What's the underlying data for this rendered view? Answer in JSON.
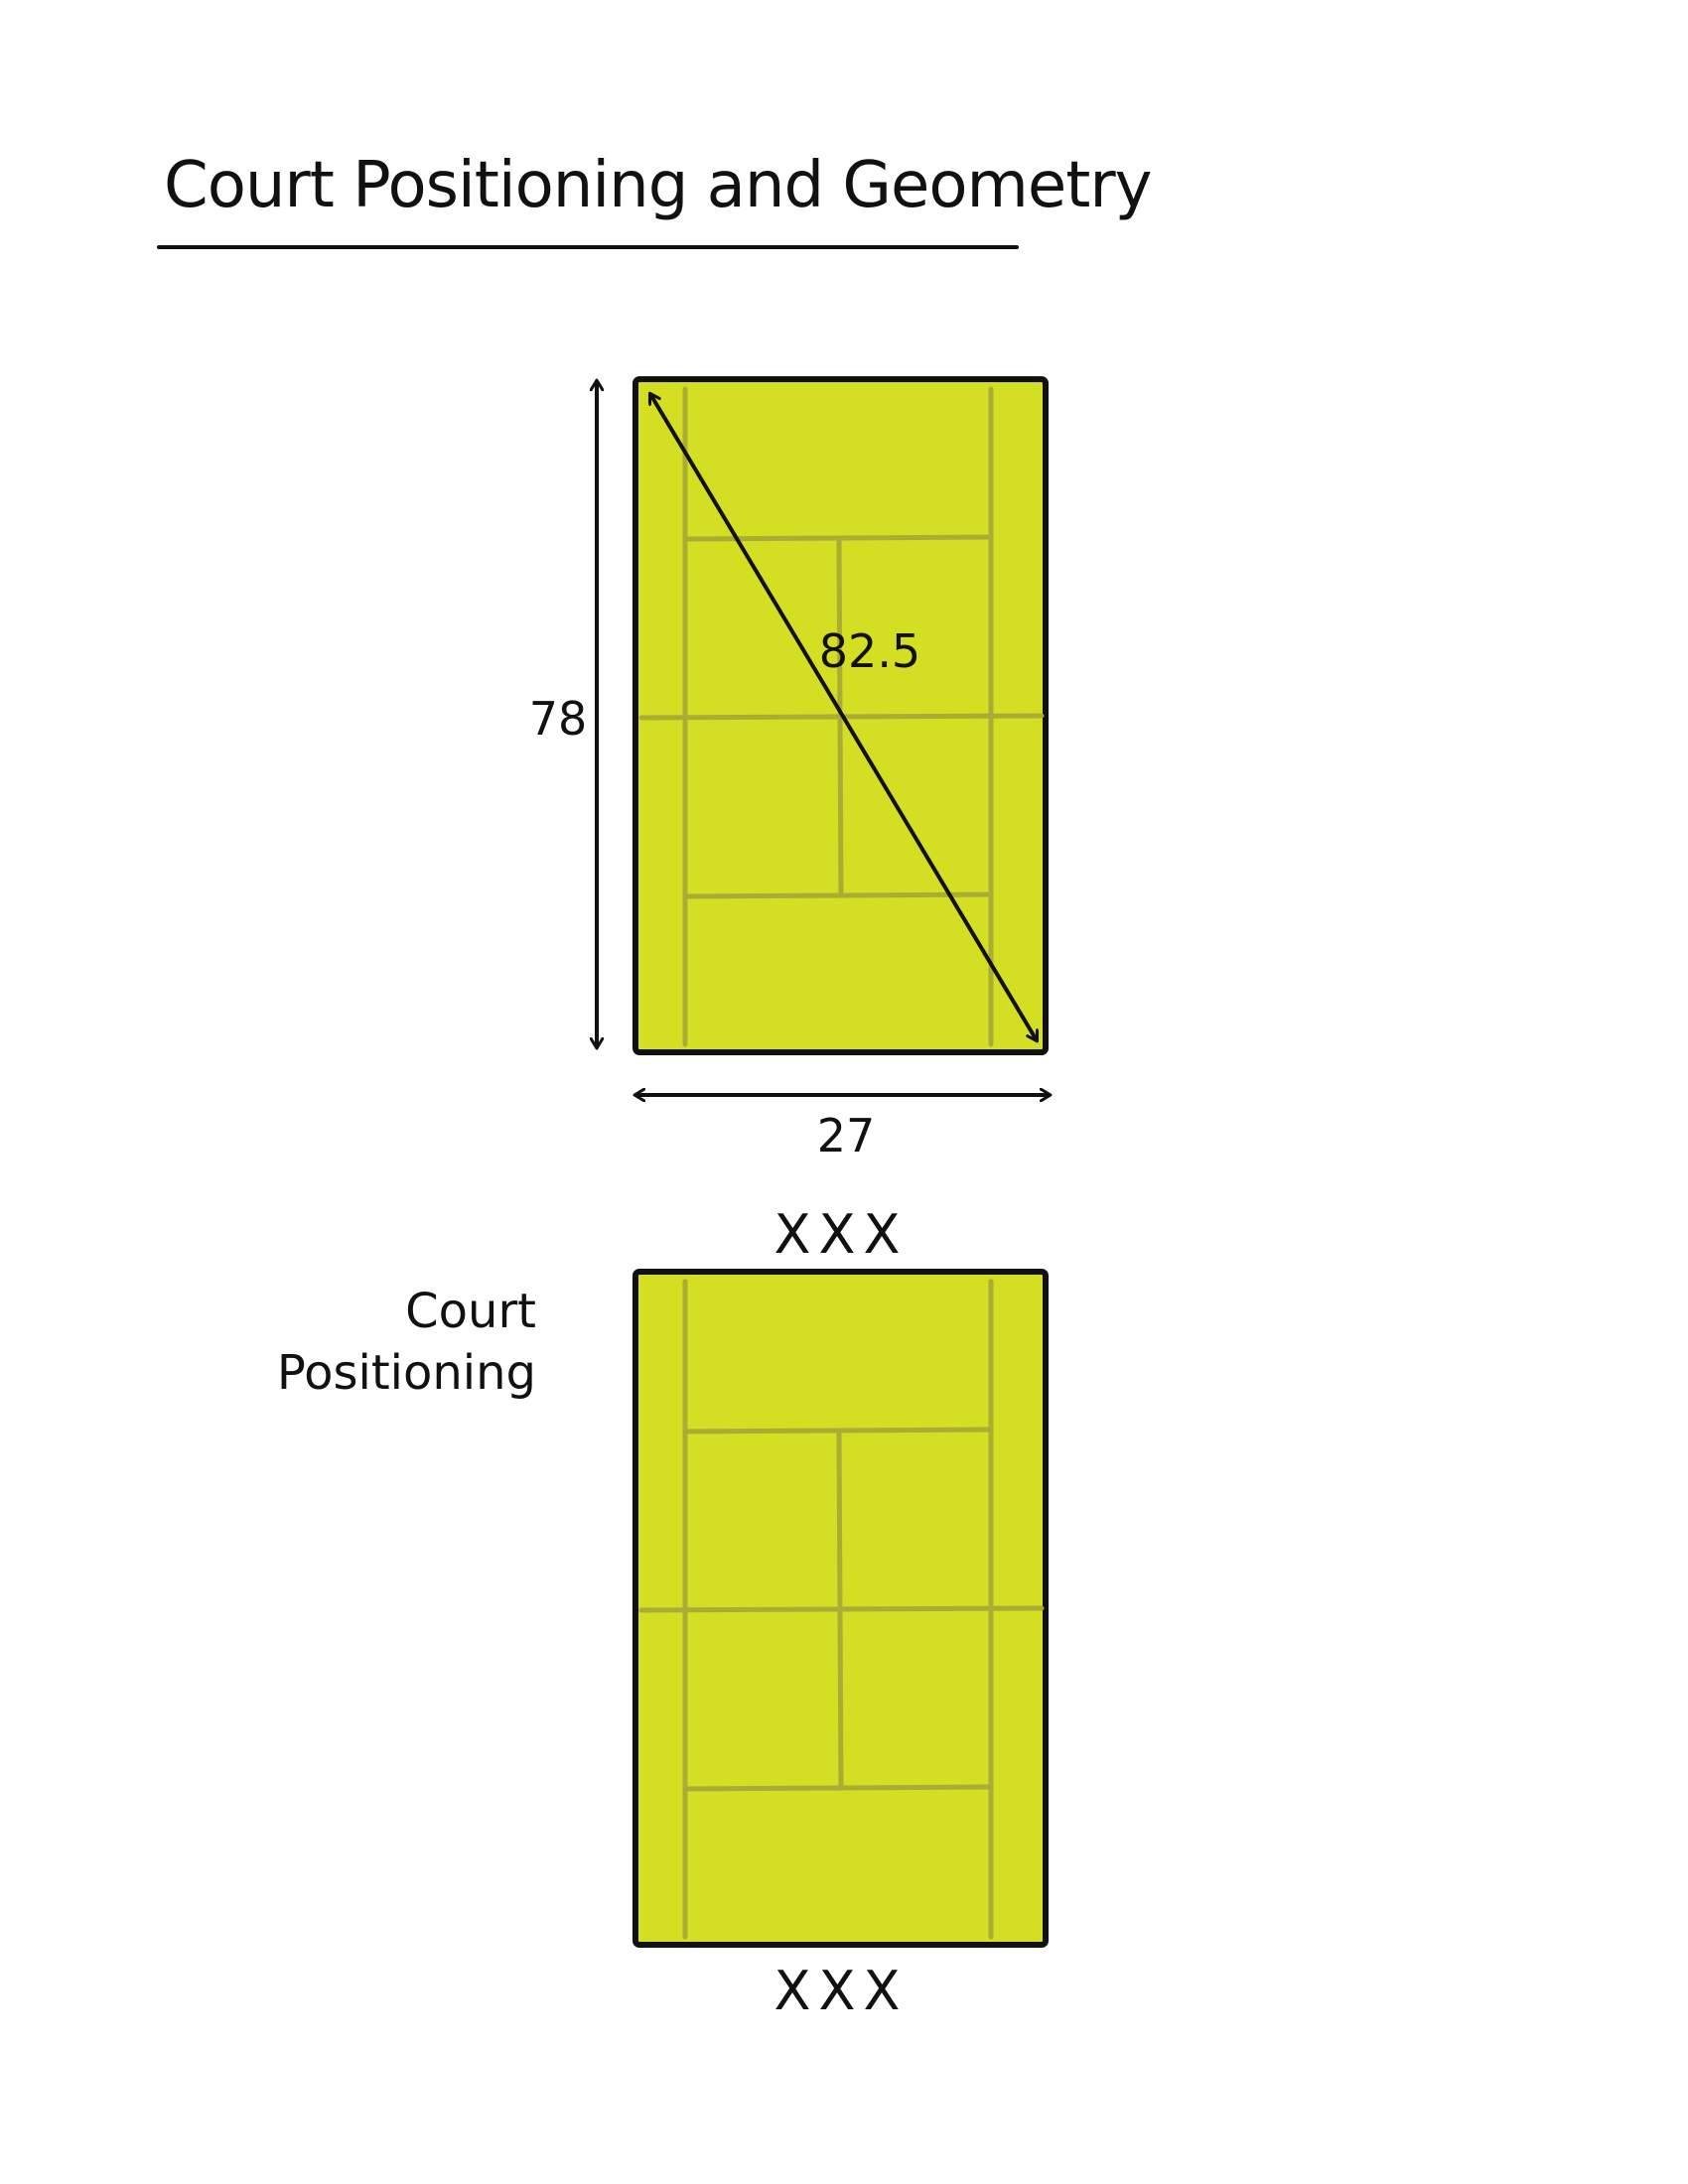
{
  "title": "Court Positioning and Geometry",
  "geometry_court": {
    "length_label": "78",
    "width_label": "27",
    "diagonal_label": "82.5"
  },
  "positioning_court": {
    "label_line1": "Court",
    "label_line2": "Positioning",
    "top_players": "XXX",
    "bottom_players": "XXX"
  },
  "colors": {
    "court_fill": "#d4de22",
    "court_lines": "#a9ad36",
    "outline": "#111111"
  }
}
